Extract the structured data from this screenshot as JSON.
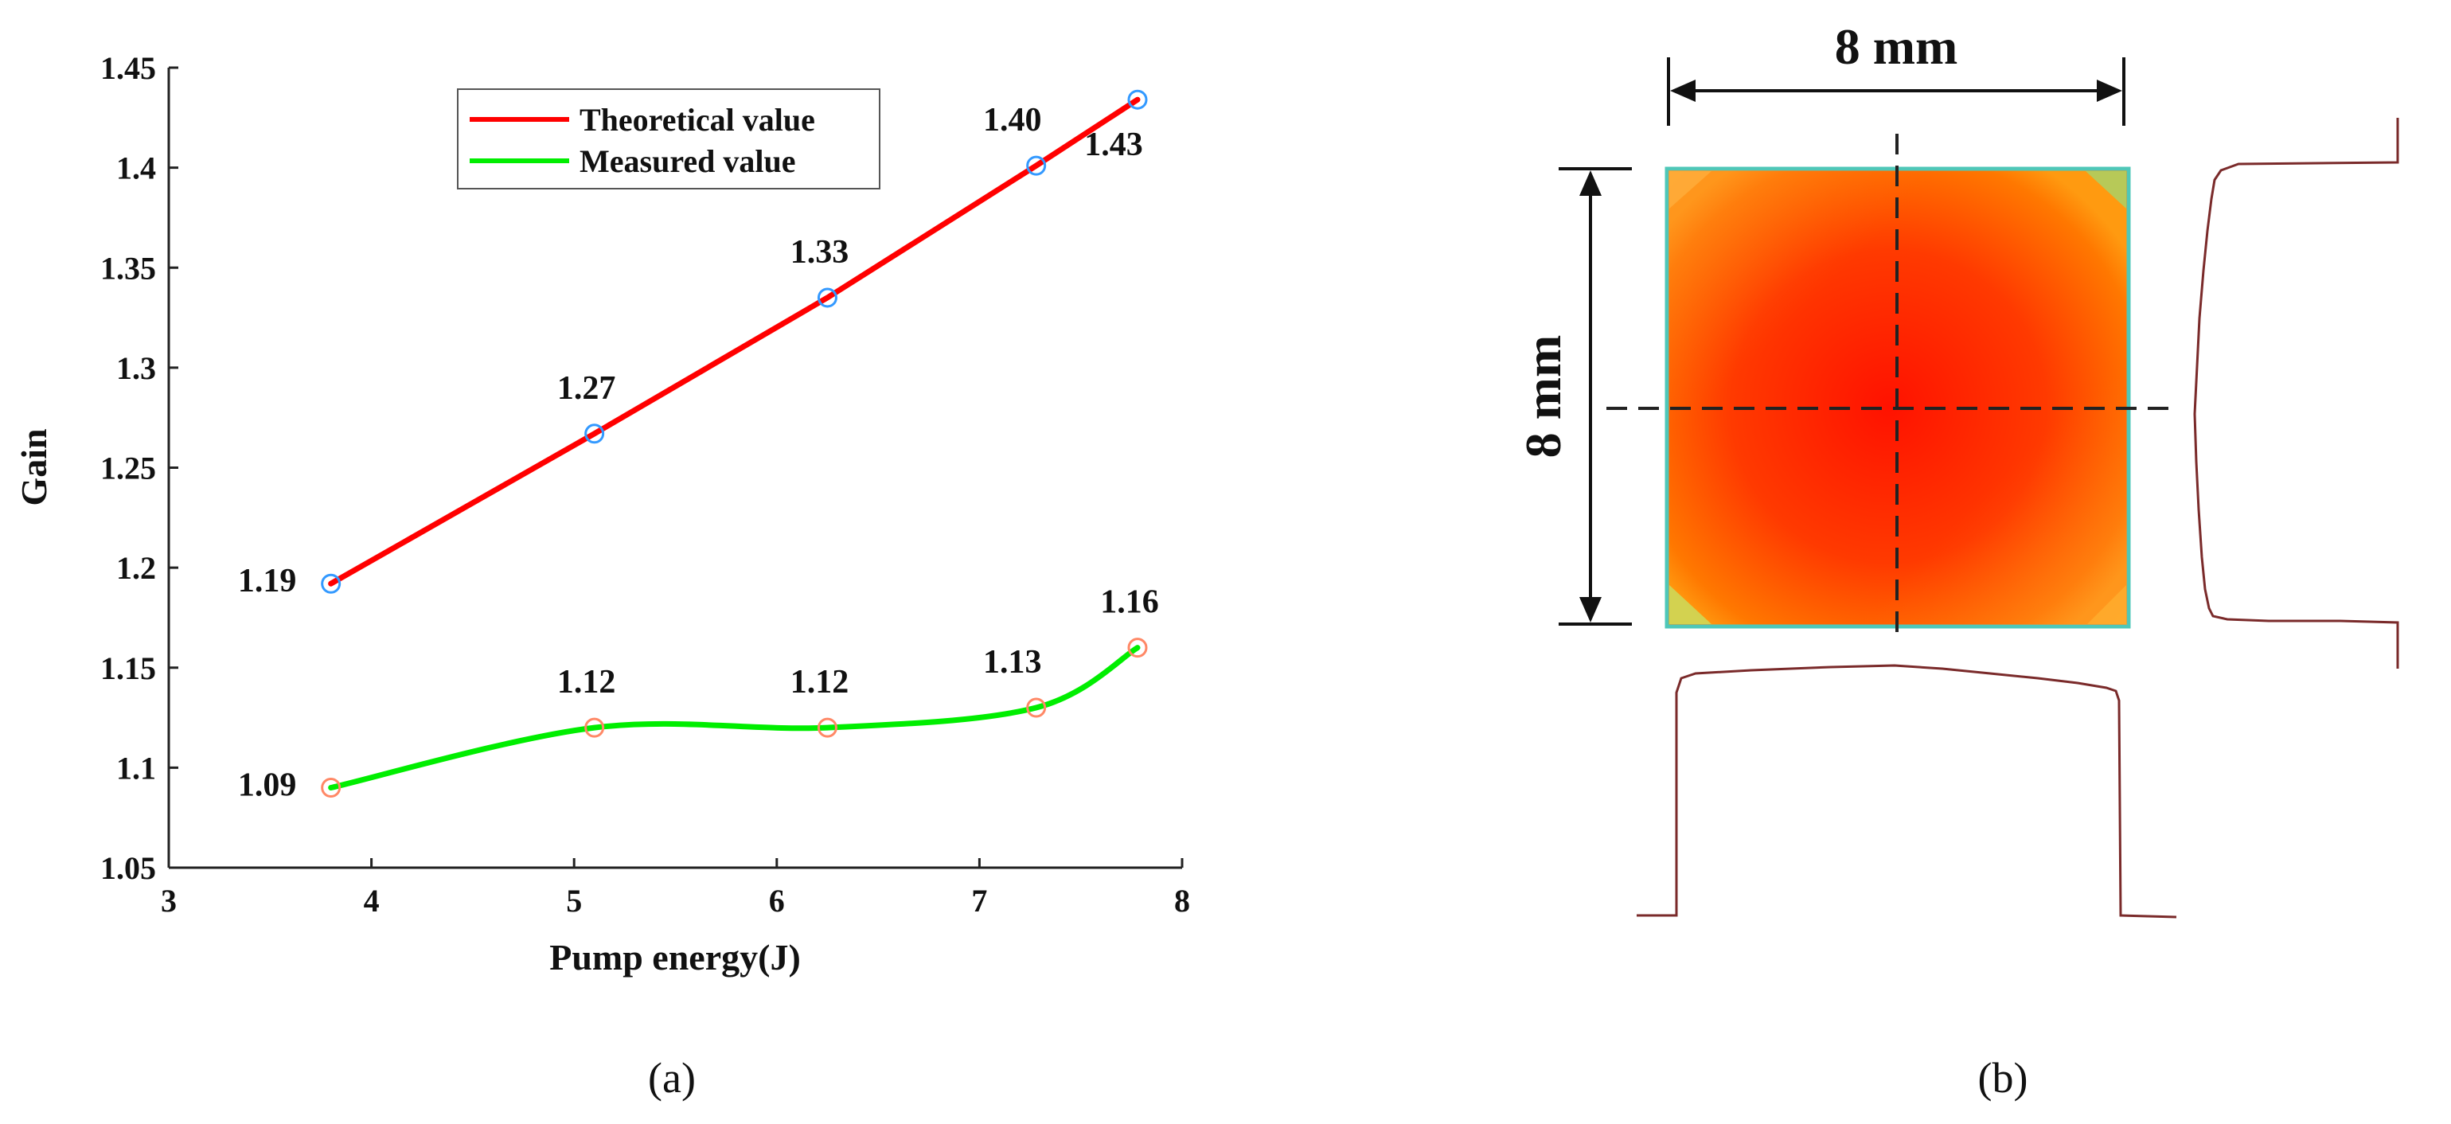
{
  "panel_a": {
    "label": "(a)"
  },
  "panel_b": {
    "label": "(b)",
    "width_label": "8 mm",
    "height_label": "8 mm",
    "colors": {
      "beam_core": "#ff1a00",
      "beam_edge": "#ff8c00",
      "corner_tint": "#5fd0c0",
      "profile": "#7a2a2a"
    }
  },
  "chart_data": {
    "type": "line",
    "title": "",
    "xlabel": "Pump energy(J)",
    "ylabel": "Gain",
    "xlim": [
      3,
      8
    ],
    "ylim": [
      1.05,
      1.45
    ],
    "xticks": [
      3,
      4,
      5,
      6,
      7,
      8
    ],
    "xtick_labels": [
      "3",
      "4",
      "5",
      "6",
      "7",
      "8"
    ],
    "yticks": [
      1.05,
      1.1,
      1.15,
      1.2,
      1.25,
      1.3,
      1.35,
      1.4,
      1.45
    ],
    "ytick_labels": [
      "1.05",
      "1.1",
      "1.15",
      "1.2",
      "1.25",
      "1.3",
      "1.35",
      "1.4",
      "1.45"
    ],
    "grid": false,
    "legend_position": "top-center",
    "series": [
      {
        "name": "Theoretical value",
        "color": "#ff0000",
        "marker_color": "#3399ff",
        "x": [
          3.8,
          5.1,
          6.25,
          7.28,
          7.78
        ],
        "values": [
          1.192,
          1.267,
          1.335,
          1.401,
          1.434
        ],
        "labels": [
          "1.19",
          "1.27",
          "1.33",
          "1.40",
          "1.43"
        ],
        "label_side": [
          "left",
          "above",
          "above",
          "above-left",
          "below"
        ]
      },
      {
        "name": "Measured value",
        "color": "#00ee00",
        "marker_color": "#ff8866",
        "x": [
          3.8,
          5.1,
          6.25,
          7.28,
          7.78
        ],
        "values": [
          1.09,
          1.12,
          1.12,
          1.13,
          1.16
        ],
        "labels": [
          "1.09",
          "1.12",
          "1.12",
          "1.13",
          "1.16"
        ],
        "label_side": [
          "left",
          "above",
          "above",
          "above-left",
          "above"
        ]
      }
    ]
  }
}
